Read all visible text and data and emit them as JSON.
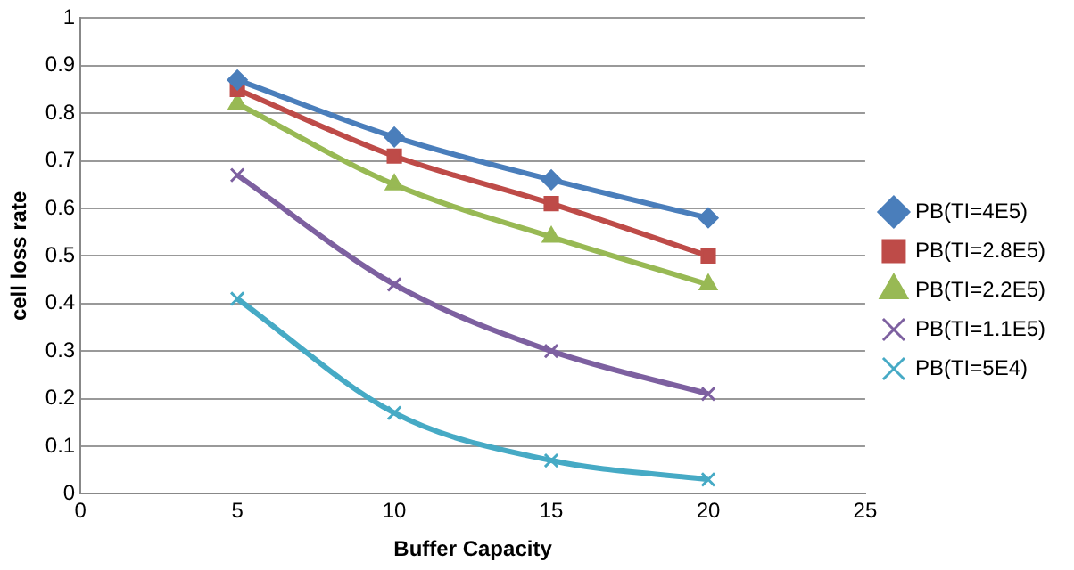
{
  "chart_data": {
    "type": "line",
    "xlabel": "Buffer Capacity",
    "ylabel": "cell loss rate",
    "x": [
      5,
      10,
      15,
      20
    ],
    "xlim": [
      0,
      25
    ],
    "xticks": [
      0,
      5,
      10,
      15,
      20,
      25
    ],
    "ylim": [
      0,
      1
    ],
    "yticks": [
      0,
      0.1,
      0.2,
      0.3,
      0.4,
      0.5,
      0.6,
      0.7,
      0.8,
      0.9,
      1
    ],
    "grid": "y",
    "legend": "right",
    "series": [
      {
        "name": "PB(TI=4E5)",
        "color": "#4a7ebb",
        "marker": "diamond",
        "values": [
          0.87,
          0.75,
          0.66,
          0.58
        ]
      },
      {
        "name": "PB(TI=2.8E5)",
        "color": "#be4b48",
        "marker": "square",
        "values": [
          0.85,
          0.71,
          0.61,
          0.5
        ]
      },
      {
        "name": "PB(TI=2.2E5)",
        "color": "#98b954",
        "marker": "triangle",
        "values": [
          0.82,
          0.65,
          0.54,
          0.44
        ]
      },
      {
        "name": "PB(TI=1.1E5)",
        "color": "#7d60a0",
        "marker": "cross",
        "values": [
          0.67,
          0.44,
          0.3,
          0.21
        ]
      },
      {
        "name": "PB(TI=5E4)",
        "color": "#46aac5",
        "marker": "cross",
        "values": [
          0.41,
          0.17,
          0.07,
          0.03
        ]
      }
    ]
  }
}
